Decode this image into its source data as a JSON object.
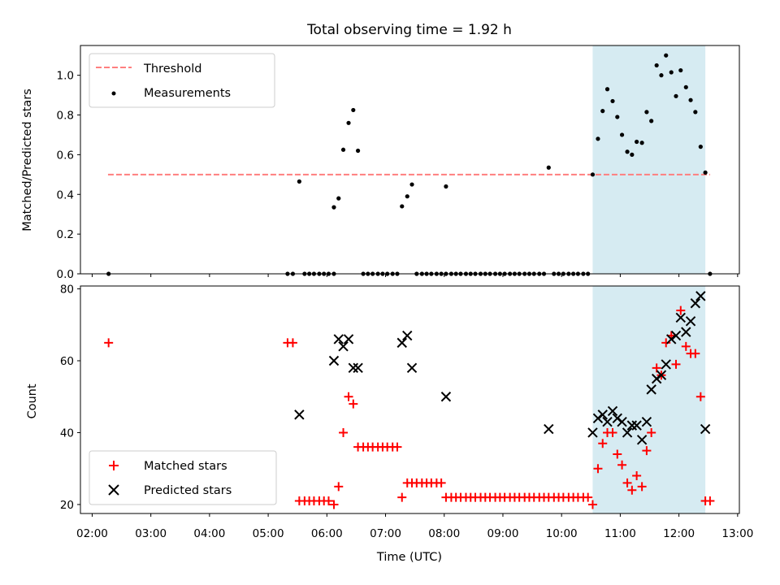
{
  "chart_data": [
    {
      "type": "scatter",
      "panel": "top",
      "title": "Total observing time = 1.92 h",
      "xlabel": "",
      "ylabel": "Matched/Predicted stars",
      "xlim": [
        1.8,
        13.03
      ],
      "ylim": [
        0.0,
        1.15
      ],
      "xticks": [
        2,
        3,
        4,
        5,
        6,
        7,
        8,
        9,
        10,
        11,
        12,
        13
      ],
      "yticks": [
        0.0,
        0.2,
        0.4,
        0.6,
        0.8,
        1.0
      ],
      "ytick_labels": [
        "0.0",
        "0.2",
        "0.4",
        "0.6",
        "0.8",
        "1.0"
      ],
      "shaded_region": {
        "x": [
          10.53,
          12.45
        ],
        "color": "#add8e6"
      },
      "legend": {
        "placement": "upper-left",
        "entries": [
          "Threshold",
          "Measurements"
        ]
      },
      "threshold": {
        "name": "Threshold",
        "y": 0.5,
        "x": [
          2.27,
          12.53
        ],
        "color": "#ff7f7f",
        "style": "dashed"
      },
      "series": [
        {
          "name": "Measurements",
          "color": "#000000",
          "marker": "dot",
          "points": [
            [
              2.28,
              0.0
            ],
            [
              5.33,
              0.0
            ],
            [
              5.42,
              0.0
            ],
            [
              5.53,
              0.465
            ],
            [
              5.62,
              0.0
            ],
            [
              5.7,
              0.0
            ],
            [
              5.78,
              0.0
            ],
            [
              5.87,
              0.0
            ],
            [
              5.95,
              0.0
            ],
            [
              6.03,
              0.0
            ],
            [
              6.12,
              0.0
            ],
            [
              6.12,
              0.335
            ],
            [
              6.2,
              0.38
            ],
            [
              6.28,
              0.625
            ],
            [
              6.37,
              0.76
            ],
            [
              6.45,
              0.825
            ],
            [
              6.53,
              0.62
            ],
            [
              6.62,
              0.0
            ],
            [
              6.7,
              0.0
            ],
            [
              6.78,
              0.0
            ],
            [
              6.87,
              0.0
            ],
            [
              6.95,
              0.0
            ],
            [
              7.03,
              0.0
            ],
            [
              7.12,
              0.0
            ],
            [
              7.2,
              0.0
            ],
            [
              7.28,
              0.34
            ],
            [
              7.37,
              0.39
            ],
            [
              7.45,
              0.45
            ],
            [
              7.53,
              0.0
            ],
            [
              7.62,
              0.0
            ],
            [
              7.7,
              0.0
            ],
            [
              7.78,
              0.0
            ],
            [
              7.87,
              0.0
            ],
            [
              7.95,
              0.0
            ],
            [
              8.03,
              0.0
            ],
            [
              8.03,
              0.44
            ],
            [
              8.12,
              0.0
            ],
            [
              8.2,
              0.0
            ],
            [
              8.28,
              0.0
            ],
            [
              8.37,
              0.0
            ],
            [
              8.45,
              0.0
            ],
            [
              8.53,
              0.0
            ],
            [
              8.62,
              0.0
            ],
            [
              8.7,
              0.0
            ],
            [
              8.78,
              0.0
            ],
            [
              8.87,
              0.0
            ],
            [
              8.95,
              0.0
            ],
            [
              9.03,
              0.0
            ],
            [
              9.12,
              0.0
            ],
            [
              9.2,
              0.0
            ],
            [
              9.28,
              0.0
            ],
            [
              9.37,
              0.0
            ],
            [
              9.45,
              0.0
            ],
            [
              9.53,
              0.0
            ],
            [
              9.62,
              0.0
            ],
            [
              9.7,
              0.0
            ],
            [
              9.78,
              0.535
            ],
            [
              9.87,
              0.0
            ],
            [
              9.95,
              0.0
            ],
            [
              10.03,
              0.0
            ],
            [
              10.12,
              0.0
            ],
            [
              10.2,
              0.0
            ],
            [
              10.28,
              0.0
            ],
            [
              10.37,
              0.0
            ],
            [
              10.45,
              0.0
            ],
            [
              10.53,
              0.5
            ],
            [
              10.62,
              0.68
            ],
            [
              10.7,
              0.82
            ],
            [
              10.78,
              0.93
            ],
            [
              10.87,
              0.87
            ],
            [
              10.95,
              0.79
            ],
            [
              11.03,
              0.7
            ],
            [
              11.12,
              0.615
            ],
            [
              11.2,
              0.6
            ],
            [
              11.28,
              0.665
            ],
            [
              11.37,
              0.66
            ],
            [
              11.45,
              0.815
            ],
            [
              11.53,
              0.77
            ],
            [
              11.62,
              1.05
            ],
            [
              11.7,
              1.0
            ],
            [
              11.78,
              1.1
            ],
            [
              11.87,
              1.015
            ],
            [
              11.95,
              0.895
            ],
            [
              12.03,
              1.025
            ],
            [
              12.12,
              0.94
            ],
            [
              12.2,
              0.875
            ],
            [
              12.28,
              0.815
            ],
            [
              12.37,
              0.64
            ],
            [
              12.45,
              0.51
            ],
            [
              12.53,
              0.0
            ]
          ]
        }
      ]
    },
    {
      "type": "scatter",
      "panel": "bottom",
      "title": "",
      "xlabel": "Time (UTC)",
      "ylabel": "Count",
      "xlim": [
        1.8,
        13.03
      ],
      "ylim": [
        17.5,
        80.8
      ],
      "xticks": [
        2,
        3,
        4,
        5,
        6,
        7,
        8,
        9,
        10,
        11,
        12,
        13
      ],
      "xtick_labels": [
        "02:00",
        "03:00",
        "04:00",
        "05:00",
        "06:00",
        "07:00",
        "08:00",
        "09:00",
        "10:00",
        "11:00",
        "12:00",
        "13:00"
      ],
      "yticks": [
        20,
        40,
        60,
        80
      ],
      "ytick_labels": [
        "20",
        "40",
        "60",
        "80"
      ],
      "shaded_region": {
        "x": [
          10.53,
          12.45
        ],
        "color": "#add8e6"
      },
      "legend": {
        "placement": "lower-left",
        "entries": [
          "Matched stars",
          "Predicted stars"
        ]
      },
      "series": [
        {
          "name": "Matched stars",
          "color": "#ff0000",
          "marker": "plus",
          "points": [
            [
              2.28,
              65
            ],
            [
              5.33,
              65
            ],
            [
              5.42,
              65
            ],
            [
              5.53,
              21
            ],
            [
              5.62,
              21
            ],
            [
              5.7,
              21
            ],
            [
              5.78,
              21
            ],
            [
              5.87,
              21
            ],
            [
              5.95,
              21
            ],
            [
              6.03,
              21
            ],
            [
              6.12,
              20
            ],
            [
              6.2,
              25
            ],
            [
              6.28,
              40
            ],
            [
              6.37,
              50
            ],
            [
              6.45,
              48
            ],
            [
              6.53,
              36
            ],
            [
              6.62,
              36
            ],
            [
              6.7,
              36
            ],
            [
              6.78,
              36
            ],
            [
              6.87,
              36
            ],
            [
              6.95,
              36
            ],
            [
              7.03,
              36
            ],
            [
              7.12,
              36
            ],
            [
              7.2,
              36
            ],
            [
              7.28,
              22
            ],
            [
              7.37,
              26
            ],
            [
              7.45,
              26
            ],
            [
              7.53,
              26
            ],
            [
              7.62,
              26
            ],
            [
              7.7,
              26
            ],
            [
              7.78,
              26
            ],
            [
              7.87,
              26
            ],
            [
              7.95,
              26
            ],
            [
              8.03,
              22
            ],
            [
              8.12,
              22
            ],
            [
              8.2,
              22
            ],
            [
              8.28,
              22
            ],
            [
              8.37,
              22
            ],
            [
              8.45,
              22
            ],
            [
              8.53,
              22
            ],
            [
              8.62,
              22
            ],
            [
              8.7,
              22
            ],
            [
              8.78,
              22
            ],
            [
              8.87,
              22
            ],
            [
              8.95,
              22
            ],
            [
              9.03,
              22
            ],
            [
              9.12,
              22
            ],
            [
              9.2,
              22
            ],
            [
              9.28,
              22
            ],
            [
              9.37,
              22
            ],
            [
              9.45,
              22
            ],
            [
              9.53,
              22
            ],
            [
              9.62,
              22
            ],
            [
              9.7,
              22
            ],
            [
              9.78,
              22
            ],
            [
              9.87,
              22
            ],
            [
              9.95,
              22
            ],
            [
              10.03,
              22
            ],
            [
              10.12,
              22
            ],
            [
              10.2,
              22
            ],
            [
              10.28,
              22
            ],
            [
              10.37,
              22
            ],
            [
              10.45,
              22
            ],
            [
              10.53,
              20
            ],
            [
              10.62,
              30
            ],
            [
              10.7,
              37
            ],
            [
              10.78,
              40
            ],
            [
              10.87,
              40
            ],
            [
              10.95,
              34
            ],
            [
              11.03,
              31
            ],
            [
              11.12,
              26
            ],
            [
              11.2,
              24
            ],
            [
              11.28,
              28
            ],
            [
              11.37,
              25
            ],
            [
              11.45,
              35
            ],
            [
              11.53,
              40
            ],
            [
              11.62,
              58
            ],
            [
              11.7,
              56
            ],
            [
              11.78,
              65
            ],
            [
              11.87,
              67
            ],
            [
              11.95,
              59
            ],
            [
              12.03,
              74
            ],
            [
              12.12,
              64
            ],
            [
              12.2,
              62
            ],
            [
              12.28,
              62
            ],
            [
              12.37,
              50
            ],
            [
              12.45,
              21
            ],
            [
              12.53,
              21
            ]
          ]
        },
        {
          "name": "Predicted stars",
          "color": "#000000",
          "marker": "x",
          "points": [
            [
              5.53,
              45
            ],
            [
              6.12,
              60
            ],
            [
              6.2,
              66
            ],
            [
              6.28,
              64
            ],
            [
              6.37,
              66
            ],
            [
              6.45,
              58
            ],
            [
              6.53,
              58
            ],
            [
              7.28,
              65
            ],
            [
              7.37,
              67
            ],
            [
              7.45,
              58
            ],
            [
              8.03,
              50
            ],
            [
              9.78,
              41
            ],
            [
              10.53,
              40
            ],
            [
              10.62,
              44
            ],
            [
              10.7,
              45
            ],
            [
              10.78,
              43
            ],
            [
              10.87,
              46
            ],
            [
              10.95,
              44
            ],
            [
              11.03,
              43
            ],
            [
              11.12,
              40
            ],
            [
              11.2,
              42
            ],
            [
              11.28,
              42
            ],
            [
              11.37,
              38
            ],
            [
              11.45,
              43
            ],
            [
              11.53,
              52
            ],
            [
              11.62,
              55
            ],
            [
              11.7,
              56
            ],
            [
              11.78,
              59
            ],
            [
              11.87,
              66
            ],
            [
              11.95,
              67
            ],
            [
              12.03,
              72
            ],
            [
              12.12,
              68
            ],
            [
              12.2,
              71
            ],
            [
              12.28,
              76
            ],
            [
              12.37,
              78
            ],
            [
              12.45,
              41
            ]
          ]
        }
      ]
    }
  ]
}
